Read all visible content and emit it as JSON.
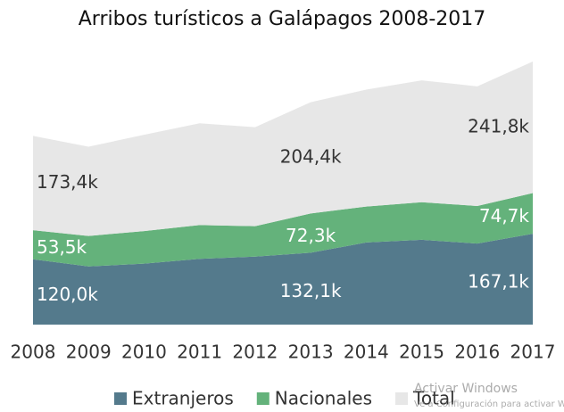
{
  "chart_data": {
    "type": "stacked-area",
    "title": "Arribos turísticos a Galápagos 2008-2017",
    "x": [
      2008,
      2009,
      2010,
      2011,
      2012,
      2013,
      2014,
      2015,
      2016,
      2017
    ],
    "xlim": [
      2008,
      2017
    ],
    "ylim": [
      0,
      500
    ],
    "legend": "bottom",
    "series": [
      {
        "name": "Extranjeros",
        "color": "#547a8c",
        "label_color": "#ffffff",
        "values": [
          120.0,
          107,
          112,
          121,
          125,
          132.1,
          151,
          156,
          149,
          167.1
        ],
        "value_labels": [
          "120,0k",
          null,
          null,
          null,
          null,
          "132,1k",
          null,
          null,
          null,
          "167,1k"
        ]
      },
      {
        "name": "Nacionales",
        "color": "#64b27b",
        "label_color": "#ffffff",
        "values": [
          53.5,
          56,
          60,
          62,
          56,
          72.3,
          66,
          69,
          69,
          74.7
        ],
        "value_labels": [
          "53,5k",
          null,
          null,
          null,
          null,
          "72,3k",
          null,
          null,
          null,
          "74,7k"
        ]
      },
      {
        "name": "Total",
        "color": "#e7e7e7",
        "label_color": "#333333",
        "values": [
          173.4,
          164,
          177,
          187,
          182,
          204.4,
          215,
          224,
          220,
          241.8
        ],
        "value_labels": [
          "173,4k",
          null,
          null,
          null,
          null,
          "204,4k",
          null,
          null,
          null,
          "241,8k"
        ]
      }
    ],
    "watermark": {
      "title": "Activar Windows",
      "text": "Ve a Configuración para activar Windows."
    }
  }
}
